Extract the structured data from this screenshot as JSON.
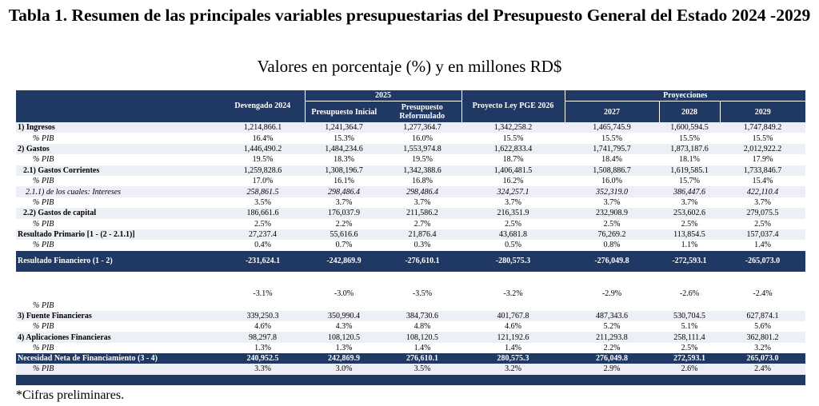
{
  "title": "Tabla 1. Resumen de las principales variables presupuestarias del Presupuesto General del Estado 2024 -2029",
  "subtitle": "Valores en porcentaje (%) y en millones RD$",
  "footnote": "*Cifras preliminares.",
  "colors": {
    "header_bg": "#1f3864",
    "strip_bg": "#eceff5"
  },
  "header": {
    "group_2025": "2025",
    "group_proj": "Proyecciones",
    "columns": [
      "Devengado 2024",
      "Presupuesto Inicial",
      "Presupuesto Reformulado",
      "Proyecto Ley PGE 2026",
      "2027",
      "2028",
      "2029"
    ]
  },
  "rows": {
    "ingresos": {
      "label": "1) Ingresos",
      "values": [
        "1,214,866.1",
        "1,241,364.7",
        "1,277,364.7",
        "1,342,258.2",
        "1,465,745.9",
        "1,600,594.5",
        "1,747,849.2"
      ]
    },
    "ingresos_pib": {
      "label": "% PIB",
      "values": [
        "16.4%",
        "15.3%",
        "16.0%",
        "15.5%",
        "15.5%",
        "15.5%",
        "15.5%"
      ]
    },
    "gastos": {
      "label": "2) Gastos",
      "values": [
        "1,446,490.2",
        "1,484,234.6",
        "1,553,974.8",
        "1,622,833.4",
        "1,741,795.7",
        "1,873,187.6",
        "2,012,922.2"
      ]
    },
    "gastos_pib": {
      "label": "% PIB",
      "values": [
        "19.5%",
        "18.3%",
        "19.5%",
        "18.7%",
        "18.4%",
        "18.1%",
        "17.9%"
      ]
    },
    "corrientes": {
      "label": "2.1) Gastos Corrientes",
      "values": [
        "1,259,828.6",
        "1,308,196.7",
        "1,342,388.6",
        "1,406,481.5",
        "1,508,886.7",
        "1,619,585.1",
        "1,733,846.7"
      ]
    },
    "corrientes_pib": {
      "label": "% PIB",
      "values": [
        "17.0%",
        "16.1%",
        "16.8%",
        "16.2%",
        "16.0%",
        "15.7%",
        "15.4%"
      ]
    },
    "intereses": {
      "label": "2.1.1) de los cuales: Intereses",
      "values": [
        "258,861.5",
        "298,486.4",
        "298,486.4",
        "324,257.1",
        "352,319.0",
        "386,447.6",
        "422,110.4"
      ]
    },
    "intereses_pib": {
      "label": "% PIB",
      "values": [
        "3.5%",
        "3.7%",
        "3.7%",
        "3.7%",
        "3.7%",
        "3.7%",
        "3.7%"
      ]
    },
    "capital": {
      "label": "2.2) Gastos de capital",
      "values": [
        "186,661.6",
        "176,037.9",
        "211,586.2",
        "216,351.9",
        "232,908.9",
        "253,602.6",
        "279,075.5"
      ]
    },
    "capital_pib": {
      "label": "% PIB",
      "values": [
        "2.5%",
        "2.2%",
        "2.7%",
        "2.5%",
        "2.5%",
        "2.5%",
        "2.5%"
      ]
    },
    "primario": {
      "label": "Resultado Primario [1 - (2 - 2.1.1)]",
      "values": [
        "27,237.4",
        "55,616.6",
        "21,876.4",
        "43,681.8",
        "76,269.2",
        "113,854.5",
        "157,037.4"
      ]
    },
    "primario_pib": {
      "label": "% PIB",
      "values": [
        "0.4%",
        "0.7%",
        "0.3%",
        "0.5%",
        "0.8%",
        "1.1%",
        "1.4%"
      ]
    },
    "financiero": {
      "label": "Resultado Financiero (1 - 2)",
      "values": [
        "-231,624.1",
        "-242,869.9",
        "-276,610.1",
        "-280,575.3",
        "-276,049.8",
        "-272,593.1",
        "-265,073.0"
      ]
    },
    "financiero_pib": {
      "label": "% PIB",
      "values": [
        "-3.1%",
        "-3.0%",
        "-3.5%",
        "-3.2%",
        "-2.9%",
        "-2.6%",
        "-2.4%"
      ]
    },
    "fuentes": {
      "label": "3) Fuente Financieras",
      "values": [
        "339,250.3",
        "350,990.4",
        "384,730.6",
        "401,767.8",
        "487,343.6",
        "530,704.5",
        "627,874.1"
      ]
    },
    "fuentes_pib": {
      "label": "% PIB",
      "values": [
        "4.6%",
        "4.3%",
        "4.8%",
        "4.6%",
        "5.2%",
        "5.1%",
        "5.6%"
      ]
    },
    "aplicaciones": {
      "label": "4) Aplicaciones Financieras",
      "values": [
        "98,297.8",
        "108,120.5",
        "108,120.5",
        "121,192.6",
        "211,293.8",
        "258,111.4",
        "362,801.2"
      ]
    },
    "aplicaciones_pib": {
      "label": "% PIB",
      "values": [
        "1.3%",
        "1.3%",
        "1.4%",
        "1.4%",
        "2.2%",
        "2.5%",
        "3.2%"
      ]
    },
    "necesidad": {
      "label": "Necesidad Neta de Financiamiento (3 - 4)",
      "values": [
        "240,952.5",
        "242,869.9",
        "276,610.1",
        "280,575.3",
        "276,049.8",
        "272,593.1",
        "265,073.0"
      ]
    },
    "necesidad_pib": {
      "label": "% PIB",
      "values": [
        "3.3%",
        "3.0%",
        "3.5%",
        "3.2%",
        "2.9%",
        "2.6%",
        "2.4%"
      ]
    }
  }
}
